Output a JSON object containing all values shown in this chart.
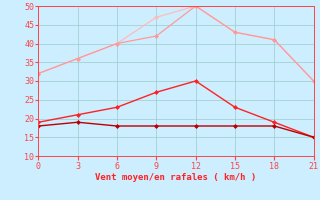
{
  "x": [
    0,
    3,
    6,
    9,
    12,
    15,
    18,
    21
  ],
  "line1": [
    32,
    36,
    40,
    47,
    50,
    43,
    41,
    30
  ],
  "line2": [
    32,
    36,
    40,
    42,
    50,
    43,
    41,
    30
  ],
  "line3": [
    19,
    21,
    23,
    27,
    30,
    23,
    19,
    15
  ],
  "line4": [
    18,
    19,
    18,
    18,
    18,
    18,
    18,
    15
  ],
  "line1_color": "#ffbbbb",
  "line2_color": "#ff9999",
  "line3_color": "#ff2222",
  "line4_color": "#bb0000",
  "marker": "D",
  "marker_size": 2,
  "xlabel": "Vent moyen/en rafales ( km/h )",
  "xlim": [
    0,
    21
  ],
  "ylim": [
    10,
    50
  ],
  "yticks": [
    10,
    15,
    20,
    25,
    30,
    35,
    40,
    45,
    50
  ],
  "xticks": [
    0,
    3,
    6,
    9,
    12,
    15,
    18,
    21
  ],
  "bg_color": "#cceeff",
  "grid_color": "#99cccc",
  "tick_color": "#ff4444",
  "label_color": "#ff2222"
}
